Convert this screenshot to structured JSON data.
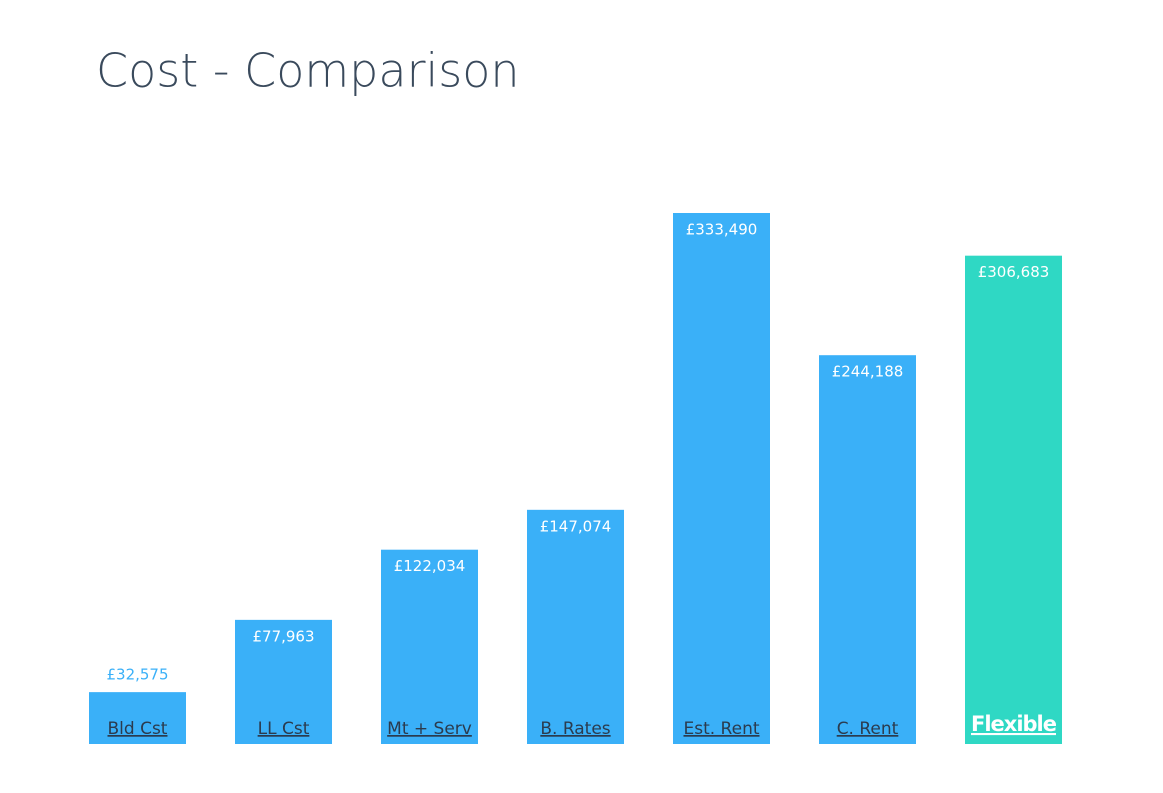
{
  "chart_data": {
    "type": "bar",
    "title": "Cost - Comparison",
    "categories": [
      "Bld Cst",
      "LL Cst",
      "Mt + Serv",
      "B. Rates",
      "Est. Rent",
      "C. Rent",
      "Flexible"
    ],
    "values": [
      32575,
      77963,
      122034,
      147074,
      333490,
      244188,
      306683
    ],
    "value_labels": [
      "£32,575",
      "£77,963",
      "£122,034",
      "£147,074",
      "£333,490",
      "£244,188",
      "£306,683"
    ],
    "colors": [
      "#3ab0f8",
      "#3ab0f8",
      "#3ab0f8",
      "#3ab0f8",
      "#3ab0f8",
      "#3ab0f8",
      "#2fd8c4"
    ],
    "label_colors": [
      "#2b3b4e",
      "#2b3b4e",
      "#2b3b4e",
      "#2b3b4e",
      "#2b3b4e",
      "#2b3b4e",
      "#ffffff"
    ]
  }
}
